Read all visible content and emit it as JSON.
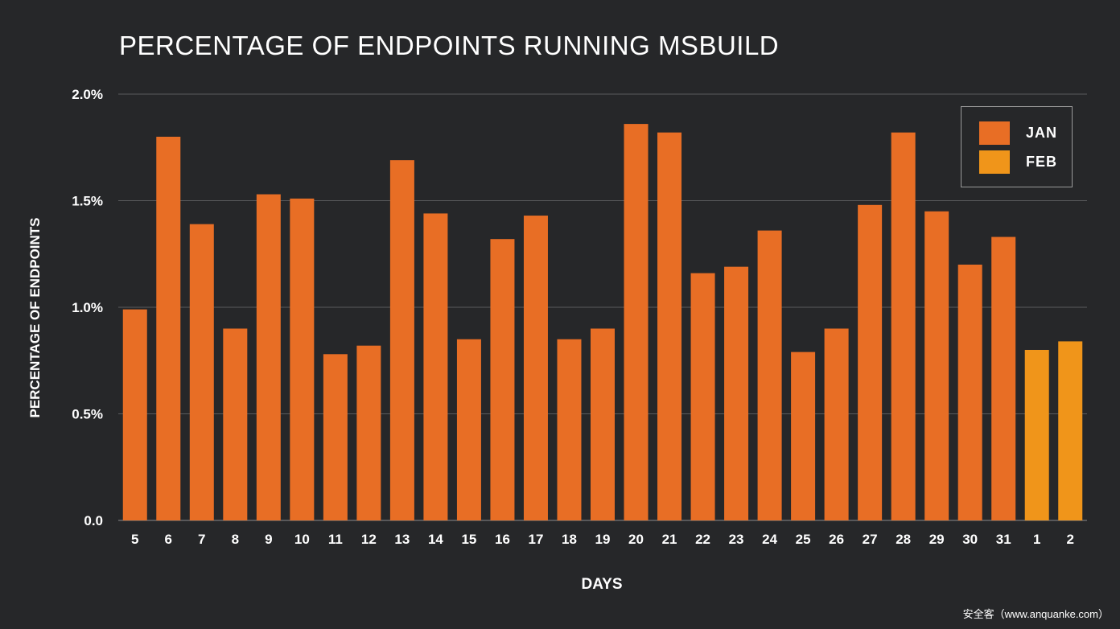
{
  "chart_data": {
    "type": "bar",
    "title": "PERCENTAGE OF ENDPOINTS RUNNING MSBUILD",
    "xlabel": "DAYS",
    "ylabel": "PERCENTAGE OF ENDPOINTS",
    "ylim": [
      0,
      2.0
    ],
    "yticks": [
      {
        "value": 0,
        "label": "0.0"
      },
      {
        "value": 0.5,
        "label": "0.5%"
      },
      {
        "value": 1.0,
        "label": "1.0%"
      },
      {
        "value": 1.5,
        "label": "1.5%"
      },
      {
        "value": 2.0,
        "label": "2.0%"
      }
    ],
    "grid": true,
    "legend_position": "top-right",
    "series": [
      {
        "name": "JAN",
        "color": "#e86e25",
        "categories": [
          "5",
          "6",
          "7",
          "8",
          "9",
          "10",
          "11",
          "12",
          "13",
          "14",
          "15",
          "16",
          "17",
          "18",
          "19",
          "20",
          "21",
          "22",
          "23",
          "24",
          "25",
          "26",
          "27",
          "28",
          "29",
          "30",
          "31"
        ],
        "values": [
          0.99,
          1.8,
          1.39,
          0.9,
          1.53,
          1.51,
          0.78,
          0.82,
          1.69,
          1.44,
          0.85,
          1.32,
          1.43,
          0.85,
          0.9,
          1.86,
          1.82,
          1.16,
          1.19,
          1.36,
          0.79,
          0.9,
          1.48,
          1.82,
          1.45,
          1.2,
          1.33
        ]
      },
      {
        "name": "FEB",
        "color": "#f0951a",
        "categories": [
          "1",
          "2"
        ],
        "values": [
          0.8,
          0.84
        ]
      }
    ]
  },
  "watermark": "安全客（www.anquanke.com）"
}
